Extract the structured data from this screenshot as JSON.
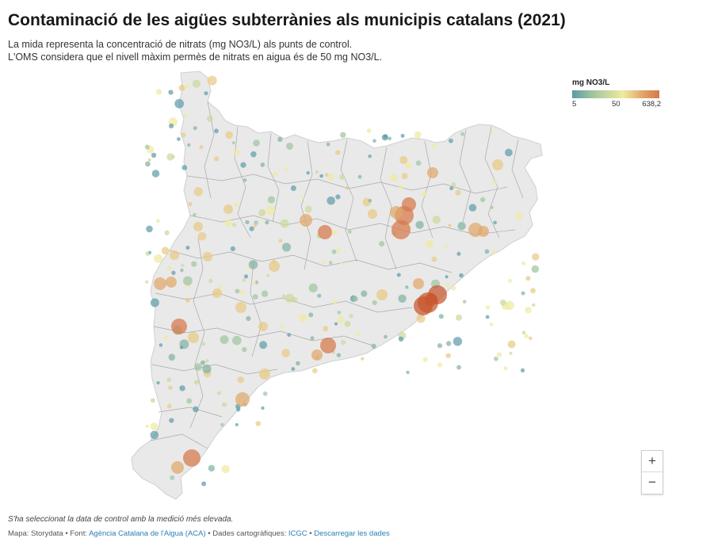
{
  "header": {
    "title": "Contaminació de les aigües subterrànies als municipis catalans (2021)",
    "subtitle_line1": "La mida representa la concentració de nitrats (mg NO3/L) als punts de control.",
    "subtitle_line2": "L'OMS considera que el nivell màxim permès de nitrats en aigua és de 50 mg NO3/L."
  },
  "legend": {
    "title": "mg NO3/L",
    "min_label": "5",
    "mid_label": "50",
    "max_label": "638,2",
    "colors": [
      "#5b9aa8",
      "#9cc49c",
      "#f0eaa0",
      "#e0a86a",
      "#d7774a"
    ]
  },
  "zoom": {
    "in_label": "+",
    "out_label": "−"
  },
  "note": "S'ha seleccionat la data de control amb la medició més elevada.",
  "footer": {
    "map_credit": "Mapa: Storydata",
    "sep1": " • Font: ",
    "source": "Agència Catalana de l'Aigua (ACA)",
    "sep2": " • Dades cartogràfiques: ",
    "carto": "ICGC",
    "sep3": " • ",
    "download": "Descarregar les dades"
  },
  "map": {
    "region_color": "#e9e9e9",
    "border_color": "#a9a9a9"
  }
}
